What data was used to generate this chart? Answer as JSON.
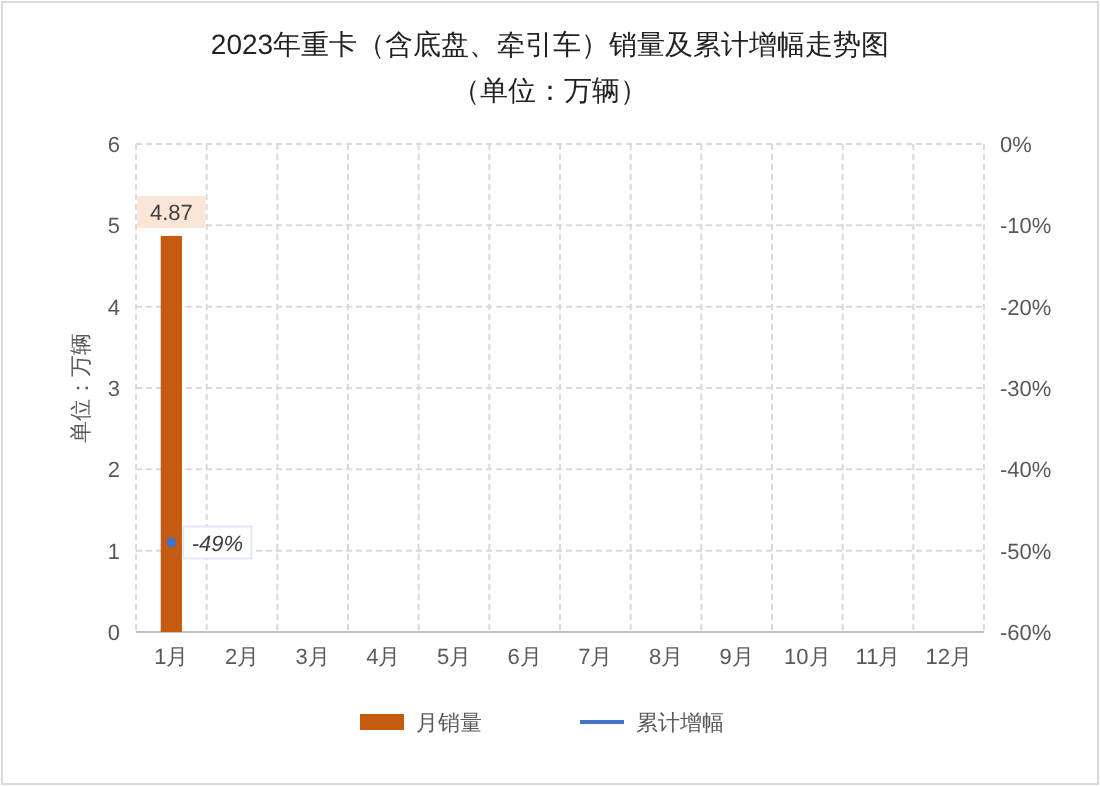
{
  "chart_data": {
    "type": "bar",
    "title": "2023年重卡（含底盘、牵引车）销量及累计增幅走势图",
    "subtitle": "（单位：万辆）",
    "ylabel": "单位：万辆",
    "categories": [
      "1月",
      "2月",
      "3月",
      "4月",
      "5月",
      "6月",
      "7月",
      "8月",
      "9月",
      "10月",
      "11月",
      "12月"
    ],
    "series": [
      {
        "name": "月销量",
        "color": "#c55a11",
        "values": [
          4.87,
          null,
          null,
          null,
          null,
          null,
          null,
          null,
          null,
          null,
          null,
          null
        ],
        "value_labels": [
          "4.87",
          null,
          null,
          null,
          null,
          null,
          null,
          null,
          null,
          null,
          null,
          null
        ]
      },
      {
        "name": "累计增幅",
        "type": "line",
        "axis": "y2",
        "color": "#4472c4",
        "marker": "circle",
        "values": [
          -49,
          null,
          null,
          null,
          null,
          null,
          null,
          null,
          null,
          null,
          null,
          null
        ],
        "value_labels": [
          "-49%",
          null,
          null,
          null,
          null,
          null,
          null,
          null,
          null,
          null,
          null,
          null
        ]
      }
    ],
    "ylim": [
      0,
      6
    ],
    "yticks": [
      0,
      1,
      2,
      3,
      4,
      5,
      6
    ],
    "y2lim": [
      -60,
      0
    ],
    "y2ticks": [
      {
        "value": 0,
        "label": "0%"
      },
      {
        "value": -10,
        "label": "-10%"
      },
      {
        "value": -20,
        "label": "-20%"
      },
      {
        "value": -30,
        "label": "-30%"
      },
      {
        "value": -40,
        "label": "-40%"
      },
      {
        "value": -50,
        "label": "-50%"
      },
      {
        "value": -60,
        "label": "-60%"
      }
    ],
    "grid": true,
    "legend": "bottom"
  }
}
